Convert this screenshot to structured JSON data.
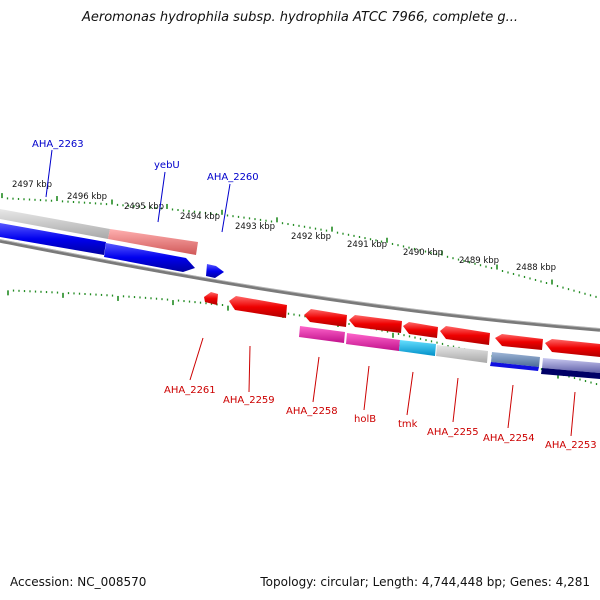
{
  "title": "Aeromonas hydrophila subsp. hydrophila ATCC 7966, complete g...",
  "footer": {
    "accession": "Accession: NC_008570",
    "summary": "Topology: circular; Length: 4,744,448 bp; Genes: 4,281"
  },
  "colors": {
    "forward_gene": "#0000ee",
    "reverse_gene": "#ee0000",
    "backbone": "#888888",
    "tick": "#228b22",
    "label_forward": "#0000cc",
    "label_reverse": "#cc0000"
  },
  "scale_labels": [
    "2497 kbp",
    "2496 kbp",
    "2495 kbp",
    "2494 kbp",
    "2493 kbp",
    "2492 kbp",
    "2491 kbp",
    "2490 kbp",
    "2489 kbp",
    "2488 kbp"
  ],
  "gene_labels": {
    "forward": [
      "AHA_2263",
      "yebU",
      "AHA_2260"
    ],
    "reverse": [
      "AHA_2261",
      "AHA_2259",
      "AHA_2258",
      "holB",
      "tmk",
      "AHA_2255",
      "AHA_2254",
      "AHA_2253"
    ]
  }
}
